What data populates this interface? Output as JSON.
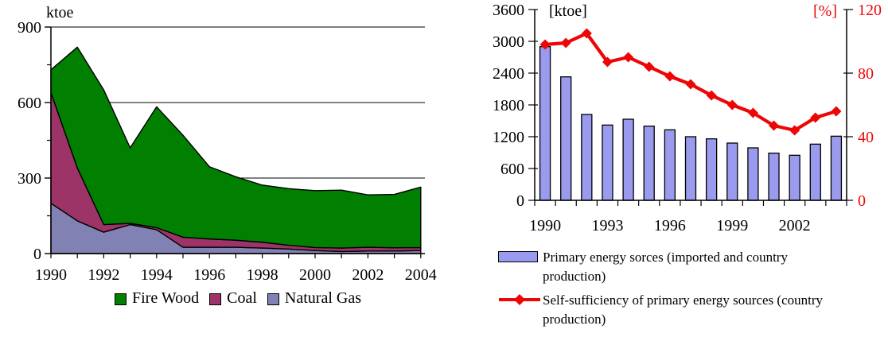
{
  "page": {
    "background": "#ffffff"
  },
  "chart_data": [
    {
      "type": "area",
      "stacked": true,
      "title": "",
      "ylabel": "ktoe",
      "x": [
        1990,
        1991,
        1992,
        1993,
        1994,
        1995,
        1996,
        1997,
        1998,
        1999,
        2000,
        2001,
        2002,
        2003,
        2004
      ],
      "x_label_step": 2,
      "ylim": [
        0,
        900
      ],
      "y_ticks": [
        0,
        300,
        600,
        900
      ],
      "y_minor_ticks": [
        150,
        450,
        750
      ],
      "gridlines": [
        300,
        600,
        900
      ],
      "grid": "horizontal",
      "legend_position": "bottom",
      "series": [
        {
          "name": "Natural Gas",
          "color": "#8181b3",
          "values": [
            200,
            130,
            85,
            115,
            95,
            25,
            25,
            25,
            22,
            18,
            12,
            8,
            10,
            10,
            12
          ]
        },
        {
          "name": "Coal",
          "color": "#9c3468",
          "values": [
            440,
            210,
            30,
            5,
            8,
            40,
            33,
            28,
            23,
            15,
            12,
            14,
            15,
            13,
            12
          ]
        },
        {
          "name": "Fire Wood",
          "color": "#017f01",
          "values": [
            90,
            480,
            535,
            300,
            480,
            405,
            287,
            252,
            227,
            225,
            226,
            230,
            208,
            212,
            240
          ]
        }
      ]
    },
    {
      "type": "bar+line",
      "title": "",
      "left_axis_label": "[ktoe]",
      "right_axis_label": "[%]",
      "x": [
        1990,
        1991,
        1992,
        1993,
        1994,
        1995,
        1996,
        1997,
        1998,
        1999,
        2000,
        2001,
        2002,
        2003,
        2004
      ],
      "x_label_indices": [
        0,
        3,
        6,
        9,
        12
      ],
      "x_labels_shown": [
        "1990",
        "1993",
        "1996",
        "1999",
        "2002"
      ],
      "left_ylim": [
        0,
        3600
      ],
      "left_ticks": [
        0,
        600,
        1200,
        1800,
        2400,
        3000,
        3600
      ],
      "right_ylim": [
        0,
        120
      ],
      "right_ticks": [
        0,
        40,
        80,
        120
      ],
      "grid": "off",
      "legend_position": "bottom",
      "bars": {
        "name": "Primary energy sorces (imported and country production)",
        "legend_lines": [
          "Primary energy sorces (imported and country",
          "production)"
        ],
        "color": "#9a9aee",
        "axis": "left",
        "values": [
          2900,
          2330,
          1620,
          1420,
          1530,
          1400,
          1330,
          1200,
          1160,
          1080,
          990,
          890,
          850,
          1060,
          1210
        ]
      },
      "line": {
        "name": "Self-sufficiency of primary energy sources (country production)",
        "legend_lines": [
          "Self-sufficiency of primary energy sources (country",
          "production)"
        ],
        "color": "#ee0505",
        "axis": "right",
        "marker": "diamond",
        "values": [
          98,
          99,
          105,
          87,
          90,
          84,
          78,
          73,
          66,
          60,
          55,
          47,
          44,
          52,
          56
        ]
      }
    }
  ]
}
